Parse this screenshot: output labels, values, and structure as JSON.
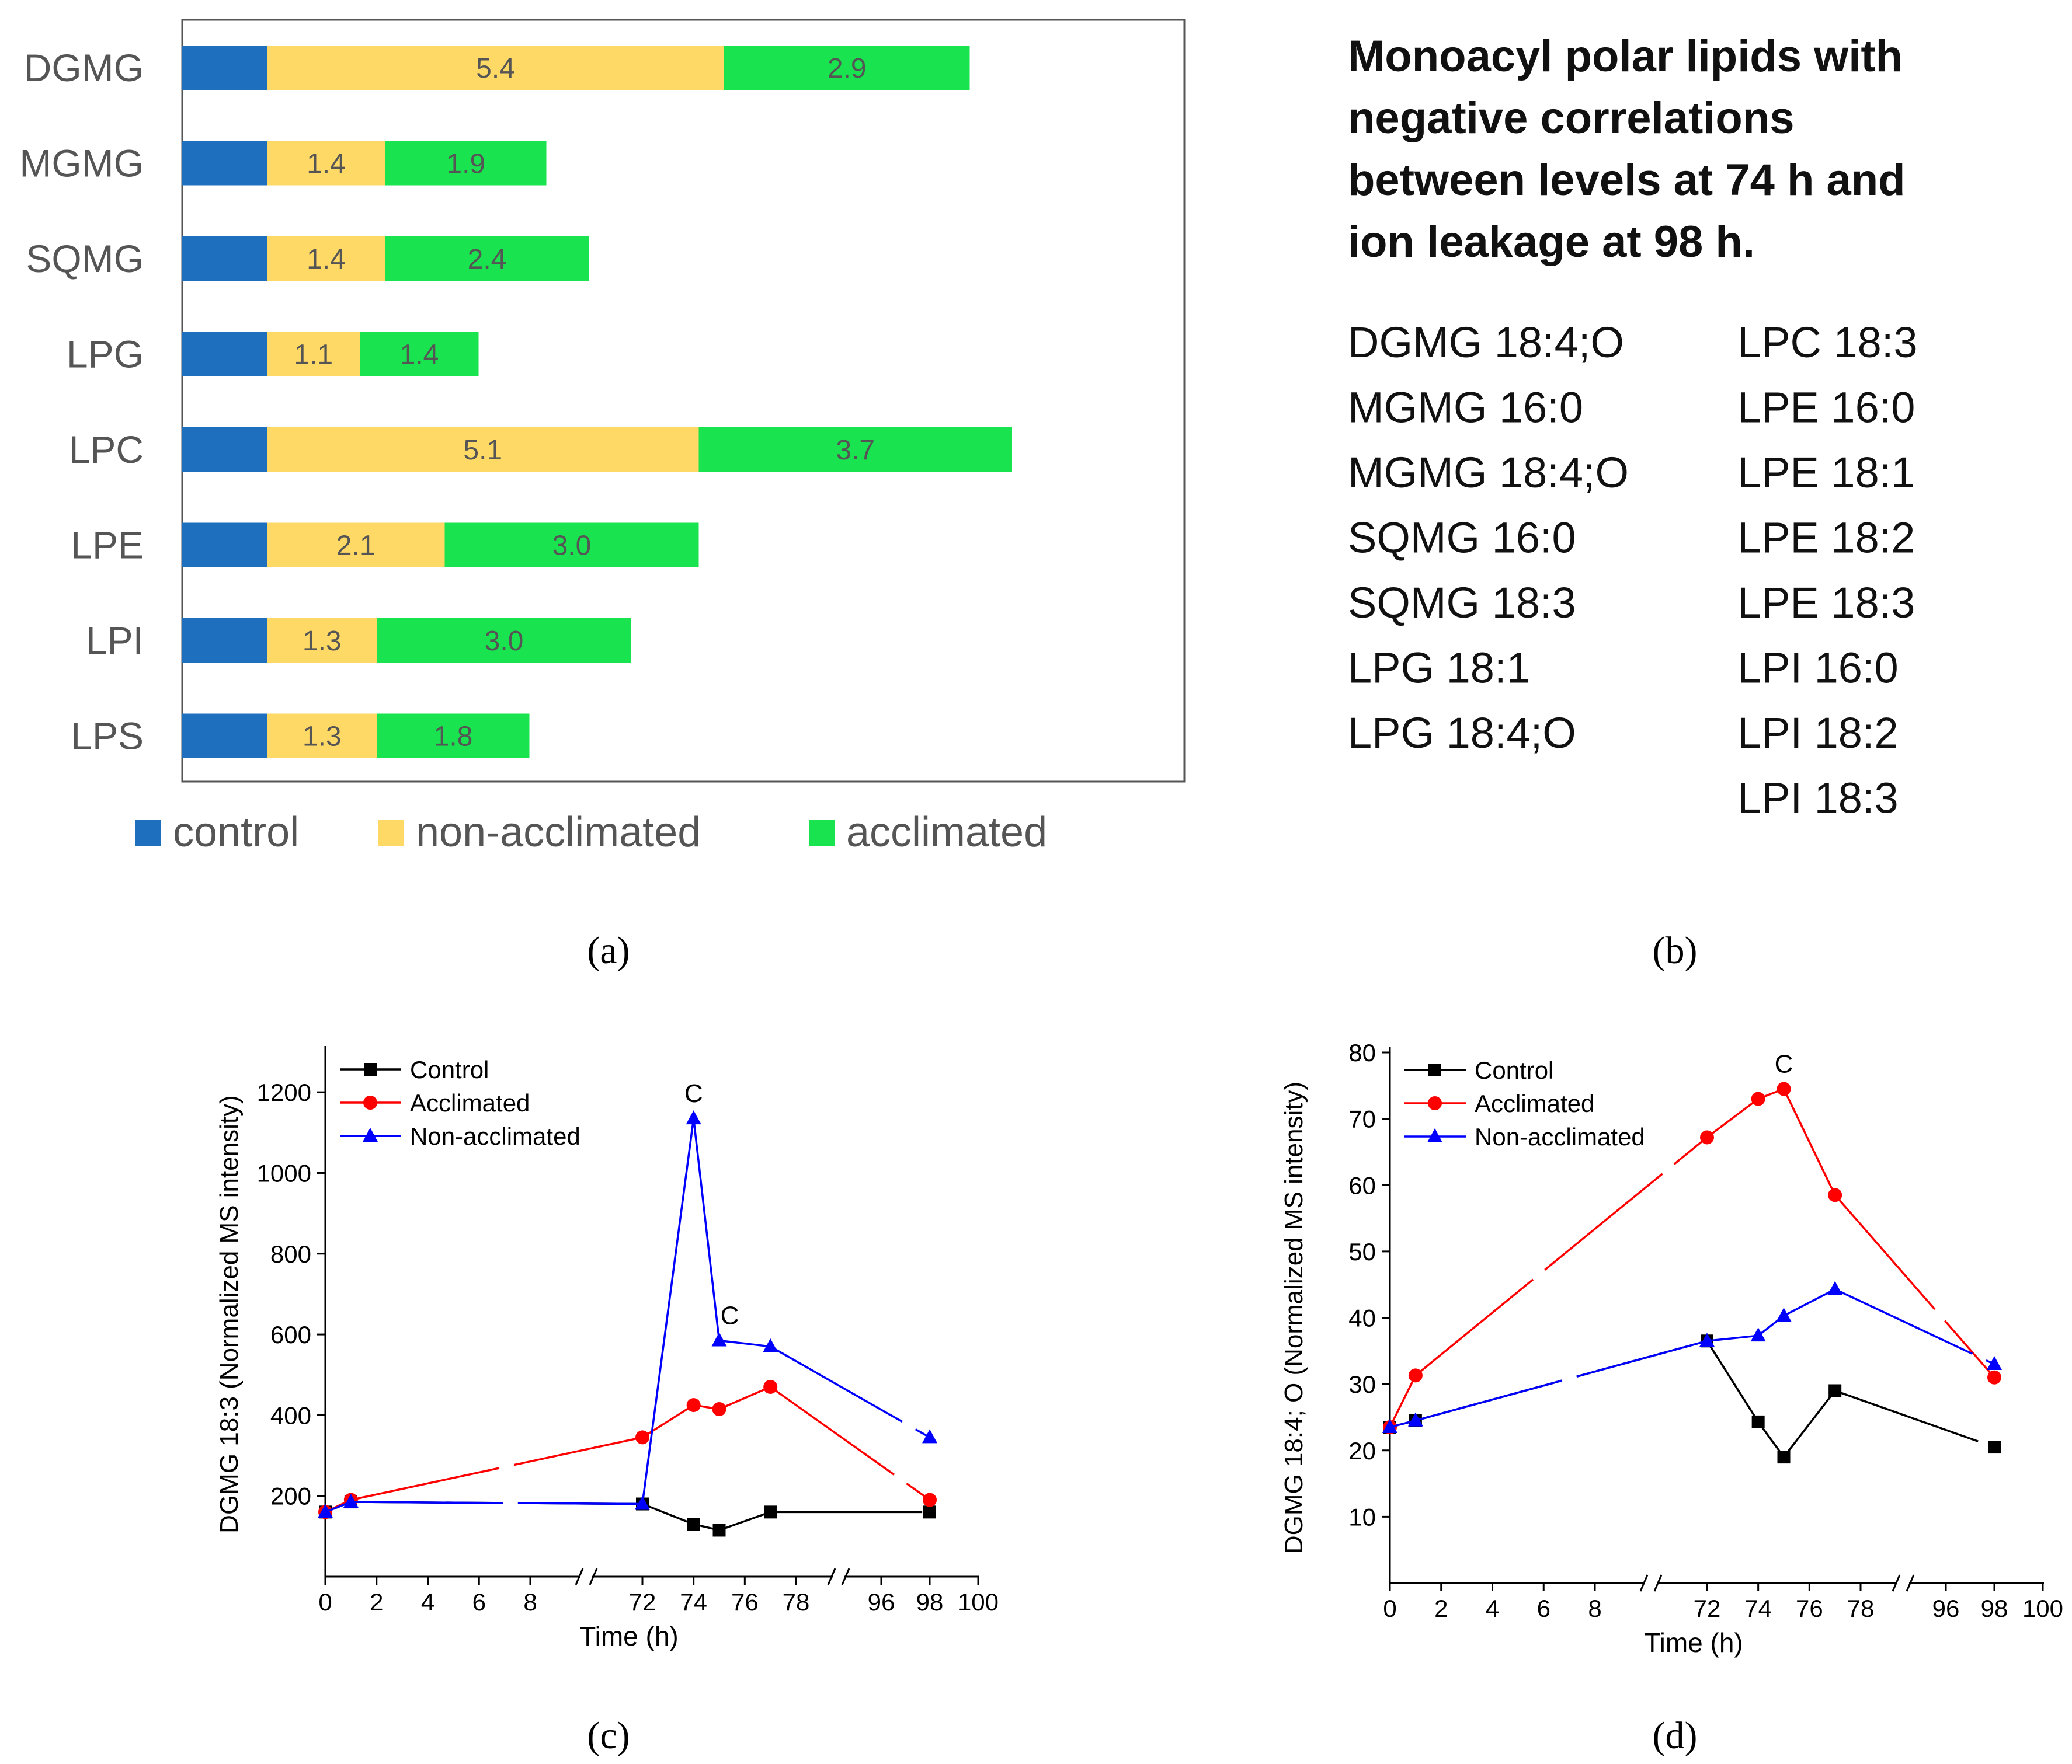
{
  "panel_a": {
    "caption": "(a)",
    "legend": [
      "control",
      "non-acclimated",
      "acclimated"
    ],
    "colors": {
      "control": "#1f6fbf",
      "non_acclimated": "#ffd966",
      "acclimated": "#19e34f"
    }
  },
  "panel_b": {
    "caption": "(b)",
    "title_lines": [
      "Monoacyl polar lipids with",
      "negative correlations",
      "between levels at 74 h and",
      "ion leakage at 98 h."
    ],
    "col1": [
      "DGMG 18:4;O",
      "MGMG 16:0",
      "MGMG 18:4;O",
      "SQMG 16:0",
      "SQMG 18:3",
      "LPG 18:1",
      "LPG 18:4;O"
    ],
    "col2": [
      "LPC 18:3",
      "LPE 16:0",
      "LPE 18:1",
      "LPE 18:2",
      "LPE 18:3",
      "LPI 16:0",
      "LPI 18:2",
      "LPI 18:3"
    ]
  },
  "panel_c": {
    "caption": "(c)"
  },
  "panel_d": {
    "caption": "(d)"
  },
  "chart_data": [
    {
      "id": "a",
      "type": "bar",
      "orientation": "horizontal-stacked",
      "categories": [
        "DGMG",
        "MGMG",
        "SQMG",
        "LPG",
        "LPC",
        "LPE",
        "LPI",
        "LPS"
      ],
      "series": [
        {
          "name": "control",
          "values": [
            1,
            1,
            1,
            1,
            1,
            1,
            1,
            1
          ],
          "labels": [
            "",
            "",
            "",
            "",
            "",
            "",
            "",
            ""
          ]
        },
        {
          "name": "non-acclimated",
          "values": [
            5.4,
            1.4,
            1.4,
            1.1,
            5.1,
            2.1,
            1.3,
            1.3
          ],
          "labels": [
            "5.4",
            "1.4",
            "1.4",
            "1.1",
            "5.1",
            "2.1",
            "1.3",
            "1.3"
          ]
        },
        {
          "name": "acclimated",
          "values": [
            2.9,
            1.9,
            2.4,
            1.4,
            3.7,
            3.0,
            3.0,
            1.8
          ],
          "labels": [
            "2.9",
            "1.9",
            "2.4",
            "1.4",
            "3.7",
            "3.0",
            "3.0",
            "1.8"
          ]
        }
      ],
      "xlim": [
        0,
        12
      ]
    },
    {
      "id": "c",
      "type": "line",
      "ylabel": "DGMG 18:3 (Normalized MS intensity)",
      "xlabel": "Time (h)",
      "yticks": [
        "200",
        "400",
        "600",
        "800",
        "1000",
        "1200"
      ],
      "ytick_values": [
        200,
        400,
        600,
        800,
        1000,
        1200
      ],
      "ylim": [
        0,
        1300
      ],
      "xticks": [
        "0",
        "2",
        "4",
        "6",
        "8",
        "72",
        "74",
        "76",
        "78",
        "96",
        "98",
        "100"
      ],
      "xtick_values": [
        0,
        2,
        4,
        6,
        8,
        72,
        74,
        76,
        78,
        96,
        98,
        100
      ],
      "axis_breaks": [
        "10-70",
        "80-94"
      ],
      "series": [
        {
          "name": "Control",
          "color": "#000000",
          "marker": "square",
          "x": [
            0,
            1,
            72,
            74,
            75,
            77,
            98
          ],
          "y": [
            160,
            185,
            180,
            130,
            115,
            160,
            160
          ]
        },
        {
          "name": "Acclimated",
          "color": "#ff0000",
          "marker": "circle",
          "x": [
            0,
            1,
            72,
            74,
            75,
            77,
            98
          ],
          "y": [
            160,
            190,
            345,
            425,
            415,
            470,
            190
          ]
        },
        {
          "name": "Non-acclimated",
          "color": "#0000ff",
          "marker": "triangle",
          "x": [
            0,
            1,
            72,
            74,
            75,
            77,
            98
          ],
          "y": [
            160,
            185,
            180,
            1135,
            585,
            570,
            345
          ]
        }
      ],
      "annotations": [
        {
          "text": "C",
          "x": 74,
          "y": 1135
        },
        {
          "text": "C",
          "x": 75,
          "y": 585
        }
      ]
    },
    {
      "id": "d",
      "type": "line",
      "ylabel": "DGMG 18:4; O (Normalized MS intensity)",
      "xlabel": "Time (h)",
      "yticks": [
        "10",
        "20",
        "30",
        "40",
        "50",
        "60",
        "70",
        "80"
      ],
      "ytick_values": [
        10,
        20,
        30,
        40,
        50,
        60,
        70,
        80
      ],
      "ylim": [
        0,
        80
      ],
      "xticks": [
        "0",
        "2",
        "4",
        "6",
        "8",
        "72",
        "74",
        "76",
        "78",
        "96",
        "98",
        "100"
      ],
      "xtick_values": [
        0,
        2,
        4,
        6,
        8,
        72,
        74,
        76,
        78,
        96,
        98,
        100
      ],
      "axis_breaks": [
        "10-70",
        "80-94"
      ],
      "series": [
        {
          "name": "Control",
          "color": "#000000",
          "marker": "square",
          "x": [
            0,
            1,
            72,
            74,
            75,
            77,
            98
          ],
          "y": [
            23.5,
            24.5,
            36.5,
            24.3,
            19.0,
            29.0,
            20.5
          ]
        },
        {
          "name": "Acclimated",
          "color": "#ff0000",
          "marker": "circle",
          "x": [
            0,
            1,
            72,
            74,
            75,
            77,
            98
          ],
          "y": [
            23.5,
            31.3,
            67.2,
            73.0,
            74.5,
            58.5,
            31.0
          ]
        },
        {
          "name": "Non-acclimated",
          "color": "#0000ff",
          "marker": "triangle",
          "x": [
            0,
            1,
            72,
            74,
            75,
            77,
            98
          ],
          "y": [
            23.5,
            24.5,
            36.5,
            37.3,
            40.3,
            44.3,
            33.0
          ]
        }
      ],
      "annotations": [
        {
          "text": "C",
          "x": 75,
          "y": 74.5
        }
      ]
    }
  ]
}
